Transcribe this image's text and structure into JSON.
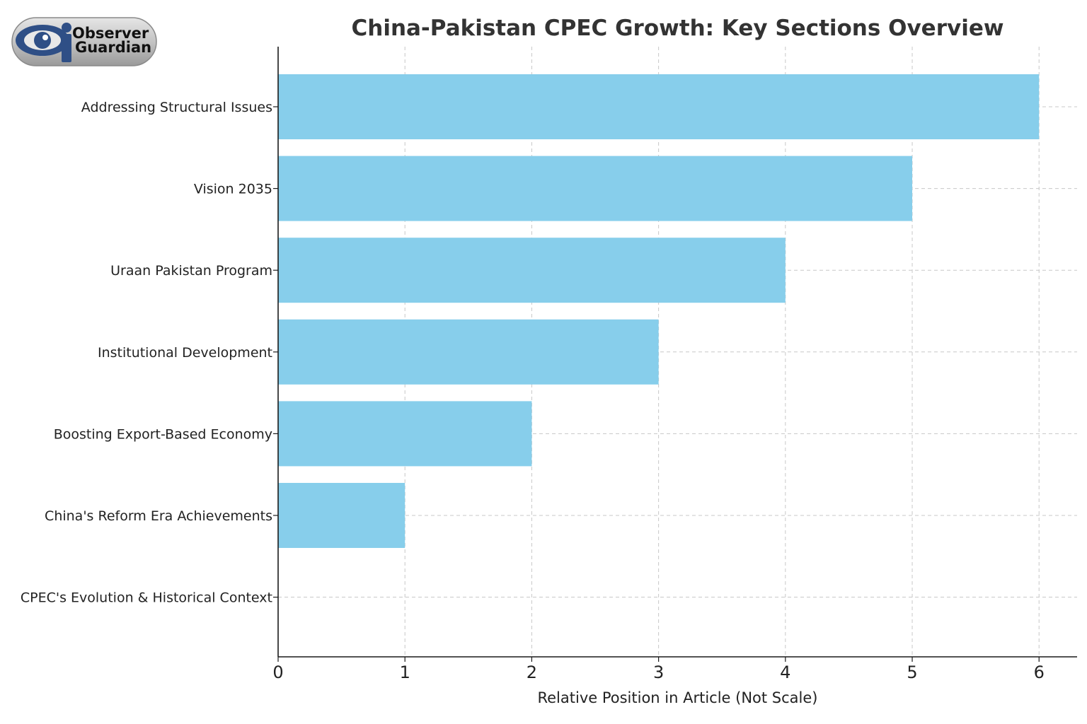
{
  "logo": {
    "line1": "Observer",
    "line2": "Guardian",
    "colors": {
      "eye": "#2f4f86",
      "pill": "#c9c9c9",
      "text": "#111111"
    }
  },
  "chart_data": {
    "type": "bar",
    "orientation": "horizontal",
    "title": "China-Pakistan CPEC Growth: Key Sections Overview",
    "xlabel": "Relative Position in Article (Not Scale)",
    "ylabel": "",
    "categories": [
      "CPEC's Evolution & Historical Context",
      "China's Reform Era Achievements",
      "Boosting Export-Based Economy",
      "Institutional Development",
      "Uraan Pakistan Program",
      "Vision 2035",
      "Addressing Structural Issues"
    ],
    "values": [
      0,
      1,
      2,
      3,
      4,
      5,
      6
    ],
    "xlim": [
      0,
      6.3
    ],
    "xticks": [
      0,
      1,
      2,
      3,
      4,
      5,
      6
    ],
    "grid": true,
    "bar_color": "#87ceeb"
  }
}
